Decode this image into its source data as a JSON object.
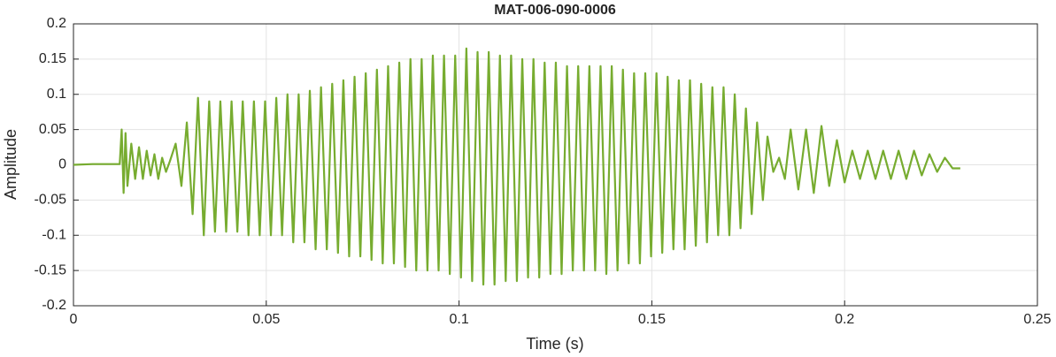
{
  "chart_data": {
    "type": "line",
    "title": "MAT-006-090-0006",
    "xlabel": "Time (s)",
    "ylabel": "Amplitude",
    "color": "#77ac30",
    "grid": true,
    "xlim": [
      0,
      0.25
    ],
    "xticks": [
      0,
      0.05,
      0.1,
      0.15,
      0.2,
      0.25
    ],
    "ylim": [
      -0.2,
      0.2
    ],
    "yticks": [
      -0.2,
      -0.15,
      -0.1,
      -0.05,
      0,
      0.05,
      0.1,
      0.15,
      0.2
    ],
    "x": [
      0,
      0.005,
      0.012,
      0.0125,
      0.013,
      0.0135,
      0.014,
      0.015,
      0.016,
      0.017,
      0.018,
      0.019,
      0.02,
      0.021,
      0.022,
      0.023,
      0.024,
      0.025,
      0.0265,
      0.028,
      0.0294,
      0.0309,
      0.0323,
      0.0338,
      0.0352,
      0.0367,
      0.0381,
      0.0396,
      0.041,
      0.0425,
      0.0439,
      0.0454,
      0.0468,
      0.0483,
      0.0497,
      0.0512,
      0.0526,
      0.0541,
      0.0555,
      0.057,
      0.0584,
      0.0599,
      0.0613,
      0.0628,
      0.0642,
      0.0657,
      0.0671,
      0.0686,
      0.07,
      0.0715,
      0.0729,
      0.0744,
      0.0758,
      0.0773,
      0.0787,
      0.0802,
      0.0816,
      0.0831,
      0.0845,
      0.086,
      0.0874,
      0.0889,
      0.0903,
      0.0918,
      0.0932,
      0.0947,
      0.0961,
      0.0976,
      0.099,
      0.1005,
      0.1019,
      0.1034,
      0.1048,
      0.1063,
      0.1077,
      0.1092,
      0.1106,
      0.1121,
      0.1135,
      0.115,
      0.1164,
      0.1179,
      0.1193,
      0.1208,
      0.1222,
      0.1237,
      0.1251,
      0.1266,
      0.128,
      0.1295,
      0.1309,
      0.1324,
      0.1338,
      0.1353,
      0.1367,
      0.1382,
      0.1396,
      0.1411,
      0.1425,
      0.144,
      0.1454,
      0.1469,
      0.1483,
      0.1498,
      0.1512,
      0.1527,
      0.1541,
      0.1556,
      0.157,
      0.1585,
      0.1599,
      0.1614,
      0.1628,
      0.1643,
      0.1657,
      0.1672,
      0.1686,
      0.1701,
      0.1715,
      0.173,
      0.1744,
      0.1759,
      0.1773,
      0.1788,
      0.18,
      0.1815,
      0.183,
      0.1845,
      0.186,
      0.188,
      0.19,
      0.192,
      0.194,
      0.196,
      0.198,
      0.2,
      0.202,
      0.204,
      0.206,
      0.208,
      0.21,
      0.212,
      0.214,
      0.216,
      0.218,
      0.22,
      0.222,
      0.224,
      0.226,
      0.228,
      0.23
    ],
    "values": [
      0,
      0.001,
      0.001,
      0.05,
      -0.04,
      0.045,
      -0.03,
      0.03,
      -0.02,
      0.025,
      -0.02,
      0.02,
      -0.015,
      0.015,
      -0.02,
      0.01,
      -0.01,
      0.005,
      0.03,
      -0.03,
      0.06,
      -0.07,
      0.095,
      -0.1,
      0.09,
      -0.095,
      0.09,
      -0.095,
      0.09,
      -0.095,
      0.09,
      -0.1,
      0.09,
      -0.1,
      0.09,
      -0.1,
      0.095,
      -0.1,
      0.1,
      -0.11,
      0.1,
      -0.11,
      0.105,
      -0.12,
      0.11,
      -0.12,
      0.115,
      -0.125,
      0.12,
      -0.13,
      0.125,
      -0.13,
      0.13,
      -0.135,
      0.135,
      -0.14,
      0.14,
      -0.14,
      0.145,
      -0.145,
      0.15,
      -0.15,
      0.15,
      -0.15,
      0.155,
      -0.15,
      0.155,
      -0.155,
      0.155,
      -0.16,
      0.165,
      -0.165,
      0.16,
      -0.17,
      0.16,
      -0.17,
      0.155,
      -0.165,
      0.155,
      -0.165,
      0.15,
      -0.16,
      0.15,
      -0.16,
      0.145,
      -0.155,
      0.145,
      -0.155,
      0.14,
      -0.15,
      0.14,
      -0.15,
      0.14,
      -0.15,
      0.14,
      -0.155,
      0.14,
      -0.15,
      0.135,
      -0.14,
      0.13,
      -0.14,
      0.13,
      -0.13,
      0.13,
      -0.125,
      0.125,
      -0.12,
      0.12,
      -0.12,
      0.12,
      -0.115,
      0.115,
      -0.11,
      0.11,
      -0.1,
      0.11,
      -0.1,
      0.1,
      -0.09,
      0.08,
      -0.07,
      0.06,
      -0.05,
      0.04,
      -0.01,
      0.01,
      -0.02,
      0.05,
      -0.035,
      0.05,
      -0.04,
      0.055,
      -0.03,
      0.035,
      -0.025,
      0.02,
      -0.02,
      0.02,
      -0.02,
      0.02,
      -0.02,
      0.02,
      -0.02,
      0.02,
      -0.015,
      0.015,
      -0.01,
      0.01,
      -0.005,
      -0.005
    ]
  }
}
